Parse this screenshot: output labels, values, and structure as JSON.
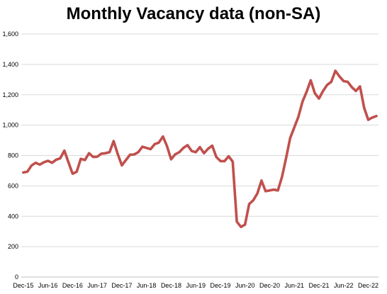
{
  "chart_data": {
    "type": "line",
    "title": "Monthly Vacancy data (non-SA)",
    "xlabel": "",
    "ylabel": "",
    "ylim": [
      0,
      1600
    ],
    "yticks": [
      0,
      200,
      400,
      600,
      800,
      1000,
      1200,
      1400,
      1600
    ],
    "ytick_labels": [
      "0",
      "200",
      "400",
      "600",
      "800",
      "1,000",
      "1,200",
      "1,400",
      "1,600"
    ],
    "xtick_labels": [
      "Dec-15",
      "Jun-16",
      "Dec-16",
      "Jun-17",
      "Dec-17",
      "Jun-18",
      "Dec-18",
      "Jun-19",
      "Dec-19",
      "Jun-20",
      "Dec-20",
      "Jun-21",
      "Dec-21",
      "Jun-22",
      "Dec-22"
    ],
    "x_start": "Dec-15",
    "x_end": "Jan-23",
    "grid": true,
    "line_color": "#c0504d",
    "series": [
      {
        "values": [
          688,
          694,
          734,
          752,
          740,
          755,
          765,
          752,
          772,
          782,
          832,
          755,
          680,
          693,
          778,
          770,
          815,
          790,
          792,
          812,
          815,
          822,
          895,
          810,
          735,
          770,
          805,
          807,
          822,
          858,
          850,
          842,
          875,
          885,
          925,
          860,
          775,
          808,
          822,
          850,
          868,
          830,
          822,
          855,
          815,
          845,
          865,
          790,
          763,
          763,
          795,
          760,
          365,
          330,
          345,
          480,
          505,
          550,
          635,
          565,
          570,
          575,
          570,
          660,
          785,
          915,
          985,
          1055,
          1155,
          1220,
          1295,
          1210,
          1175,
          1225,
          1265,
          1285,
          1358,
          1320,
          1290,
          1285,
          1250,
          1225,
          1255,
          1115,
          1035,
          1050,
          1060
        ]
      }
    ]
  }
}
